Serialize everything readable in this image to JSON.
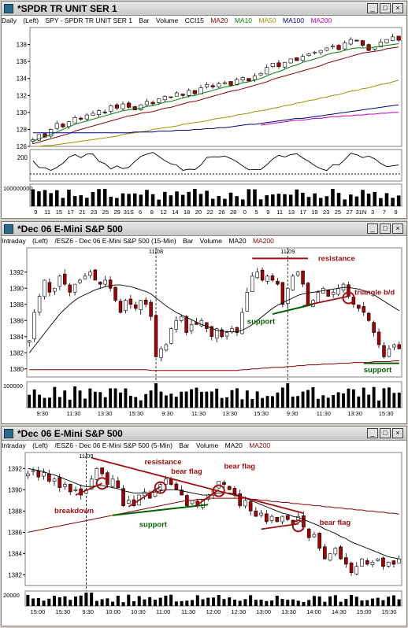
{
  "windows": [
    {
      "title": "*SPDR TR UNIT SER 1",
      "subtitle": {
        "interval": "Daily",
        "axis": "(Left)",
        "symbol": "SPY - SPDR TR UNIT SER 1",
        "style": "Bar",
        "volume": "Volume",
        "ind1": "CCI15",
        "ind2": "MA20",
        "ind3": "MA10",
        "ind4": "MA50",
        "ind5": "MA100",
        "ind6": "MA200"
      },
      "colors": {
        "ma20": "#8b0000",
        "ma10": "#008000",
        "ma50": "#a09000",
        "ma100": "#000080",
        "ma200": "#c000c0"
      }
    },
    {
      "title": "*Dec 06  E-Mini S&P 500",
      "subtitle": {
        "interval": "Intraday",
        "axis": "(Left)",
        "symbol": "/ESZ6 - Dec 06  E-Mini S&P 500  (15-Min)",
        "style": "Bar",
        "volume": "Volume",
        "ind1": "MA20",
        "ind2": "MA200"
      }
    },
    {
      "title": "*Dec 06  E-Mini S&P 500",
      "subtitle": {
        "interval": "Intraday",
        "axis": "(Left)",
        "symbol": "/ESZ6 - Dec 06  E-Mini S&P 500  (5-Min)",
        "style": "Bar",
        "volume": "Volume",
        "ind1": "MA20",
        "ind2": "MA200"
      }
    }
  ],
  "chart_data": [
    {
      "type": "candlestick",
      "title": "SPDR TR UNIT SER 1 (Daily)",
      "ylim": [
        126,
        140
      ],
      "yticks": [
        "138",
        "136",
        "134",
        "132",
        "130",
        "128",
        "126"
      ],
      "xticks": [
        "9",
        "11",
        "15",
        "17",
        "21",
        "23",
        "25",
        "29",
        "31S",
        "6",
        "8",
        "12",
        "14",
        "18",
        "20",
        "22",
        "26",
        "28",
        "0",
        "5",
        "9",
        "11",
        "13",
        "17",
        "19",
        "23",
        "25",
        "27",
        "31N",
        "3",
        "7",
        "9"
      ],
      "close": [
        126.8,
        127.4,
        127.1,
        128.0,
        128.7,
        128.3,
        128.9,
        129.4,
        129.2,
        129.7,
        129.9,
        130.2,
        130.0,
        130.8,
        130.5,
        131.0,
        130.6,
        130.3,
        130.9,
        131.3,
        131.0,
        131.6,
        131.9,
        131.8,
        132.3,
        132.0,
        132.6,
        132.2,
        132.9,
        133.3,
        133.0,
        133.4,
        133.5,
        133.2,
        133.9,
        134.1,
        133.7,
        134.3,
        134.6,
        135.3,
        135.8,
        135.4,
        135.9,
        136.3,
        136.1,
        136.6,
        136.9,
        137.1,
        137.3,
        137.6,
        137.8,
        137.4,
        138.2,
        138.6,
        138.4,
        137.9,
        137.3,
        137.7,
        138.3,
        138.6,
        138.9,
        138.5
      ],
      "ma20": [
        126.3,
        126.5,
        126.7,
        126.9,
        127.1,
        127.3,
        127.5,
        127.8,
        128.0,
        128.2,
        128.4,
        128.6,
        128.8,
        129.0,
        129.2,
        129.4,
        129.6,
        129.7,
        129.9,
        130.0,
        130.1,
        130.3,
        130.5,
        130.6,
        130.8,
        131.0,
        131.2,
        131.3,
        131.5,
        131.7,
        131.9,
        132.1,
        132.3,
        132.5,
        132.6,
        132.8,
        133.0,
        133.2,
        133.4,
        133.6,
        133.9,
        134.1,
        134.3,
        134.5,
        134.7,
        134.9,
        135.1,
        135.3,
        135.5,
        135.8,
        136.0,
        136.2,
        136.4,
        136.6,
        136.8,
        137.0,
        137.1,
        137.2,
        137.3,
        137.5,
        137.6,
        137.7
      ],
      "ma10": [
        126.6,
        126.9,
        127.1,
        127.4,
        127.7,
        128.0,
        128.3,
        128.6,
        128.8,
        129.0,
        129.2,
        129.4,
        129.6,
        129.8,
        130.0,
        130.2,
        130.3,
        130.4,
        130.5,
        130.7,
        130.8,
        131.0,
        131.2,
        131.3,
        131.5,
        131.7,
        131.9,
        132.0,
        132.2,
        132.4,
        132.6,
        132.8,
        133.0,
        133.1,
        133.3,
        133.5,
        133.6,
        133.8,
        134.0,
        134.3,
        134.6,
        134.8,
        135.1,
        135.4,
        135.6,
        135.9,
        136.1,
        136.3,
        136.5,
        136.8,
        137.0,
        137.1,
        137.3,
        137.5,
        137.6,
        137.6,
        137.6,
        137.7,
        137.8,
        137.9,
        138.0,
        138.1
      ],
      "ma50": [
        126.0,
        126.0,
        126.1,
        126.1,
        126.2,
        126.3,
        126.4,
        126.5,
        126.6,
        126.7,
        126.8,
        126.9,
        127.0,
        127.1,
        127.2,
        127.4,
        127.5,
        127.6,
        127.7,
        127.8,
        128.0,
        128.1,
        128.2,
        128.3,
        128.4,
        128.6,
        128.7,
        128.8,
        128.9,
        129.0,
        129.2,
        129.3,
        129.4,
        129.5,
        129.7,
        129.8,
        129.9,
        130.1,
        130.2,
        130.3,
        130.5,
        130.6,
        130.8,
        130.9,
        131.1,
        131.2,
        131.4,
        131.5,
        131.7,
        131.8,
        132.0,
        132.1,
        132.3,
        132.5,
        132.6,
        132.8,
        132.9,
        133.1,
        133.3,
        133.4,
        133.6,
        133.8
      ],
      "ma100": [
        127.6,
        127.6,
        127.6,
        127.6,
        127.6,
        127.6,
        127.6,
        127.6,
        127.6,
        127.6,
        127.6,
        127.6,
        127.6,
        127.6,
        127.6,
        127.6,
        127.6,
        127.7,
        127.7,
        127.7,
        127.7,
        127.8,
        127.8,
        127.8,
        127.9,
        127.9,
        127.9,
        128.0,
        128.0,
        128.1,
        128.1,
        128.2,
        128.2,
        128.3,
        128.4,
        128.5,
        128.6,
        128.6,
        128.7,
        128.8,
        128.9,
        129.0,
        129.1,
        129.2,
        129.3,
        129.3,
        129.4,
        129.5,
        129.6,
        129.7,
        129.8,
        129.9,
        130.0,
        130.1,
        130.2,
        130.3,
        130.4,
        130.5,
        130.6,
        130.7,
        130.8,
        130.9
      ],
      "ma200": [
        null,
        null,
        null,
        null,
        null,
        null,
        null,
        null,
        null,
        null,
        null,
        null,
        null,
        null,
        null,
        null,
        null,
        null,
        null,
        null,
        null,
        null,
        null,
        null,
        null,
        null,
        null,
        null,
        null,
        null,
        null,
        null,
        null,
        null,
        null,
        null,
        null,
        null,
        128.5,
        128.6,
        128.7,
        128.8,
        128.9,
        129.0,
        129.1,
        129.1,
        129.2,
        129.3,
        129.3,
        129.4,
        129.5,
        129.5,
        129.6,
        129.6,
        129.7,
        129.7,
        129.8,
        129.8,
        129.9,
        129.9,
        130.0,
        130.0
      ],
      "cci_label": "200",
      "volume_label": "100000000"
    },
    {
      "type": "candlestick",
      "title": "/ESZ6 - Dec 06 E-Mini S&P 500 (15-Min)",
      "ylim": [
        1379,
        1395
      ],
      "yticks": [
        "1392",
        "1390",
        "1388",
        "1386",
        "1384",
        "1382",
        "1380"
      ],
      "xticks": [
        "9:30",
        "11:30",
        "13:30",
        "15:30",
        "9:30",
        "11:30",
        "13:30",
        "15:30",
        "9:30",
        "11:30",
        "13:30",
        "15:30"
      ],
      "date_marks": [
        "11/08",
        "11/09"
      ],
      "close": [
        1383.5,
        1387.0,
        1389.0,
        1391.0,
        1389.5,
        1390.0,
        1391.5,
        1390.5,
        1389.5,
        1390.5,
        1391.0,
        1391.5,
        1392.0,
        1391.0,
        1390.5,
        1391.0,
        1390.0,
        1388.5,
        1387.0,
        1388.5,
        1388.0,
        1387.5,
        1388.5,
        1388.0,
        1386.5,
        1381.5,
        1382.5,
        1383.0,
        1385.0,
        1386.0,
        1386.5,
        1384.5,
        1385.5,
        1385.5,
        1386.0,
        1385.0,
        1384.0,
        1385.0,
        1384.0,
        1384.5,
        1385.0,
        1384.5,
        1387.0,
        1389.5,
        1391.5,
        1392.0,
        1391.0,
        1391.5,
        1391.0,
        1390.5,
        1388.0,
        1390.0,
        1391.5,
        1392.0,
        1390.5,
        1388.0,
        1388.5,
        1389.5,
        1390.0,
        1389.0,
        1389.5,
        1390.0,
        1390.5,
        1389.0,
        1388.0,
        1387.5,
        1387.0,
        1386.0,
        1384.5,
        1383.0,
        1381.5,
        1382.5,
        1383.0,
        1382.5
      ],
      "ma20": [
        1382.0,
        1382.8,
        1383.6,
        1384.4,
        1385.2,
        1386.0,
        1386.8,
        1387.4,
        1388.0,
        1388.5,
        1388.9,
        1389.2,
        1389.5,
        1389.8,
        1390.0,
        1390.2,
        1390.3,
        1390.4,
        1390.4,
        1390.3,
        1390.2,
        1390.0,
        1389.8,
        1389.6,
        1389.3,
        1388.8,
        1388.3,
        1387.8,
        1387.4,
        1387.0,
        1386.7,
        1386.4,
        1386.1,
        1385.8,
        1385.5,
        1385.3,
        1385.0,
        1384.8,
        1384.7,
        1384.6,
        1384.6,
        1384.6,
        1384.8,
        1385.1,
        1385.5,
        1386.0,
        1386.5,
        1387.0,
        1387.5,
        1387.9,
        1388.2,
        1388.5,
        1388.8,
        1389.1,
        1389.3,
        1389.4,
        1389.5,
        1389.6,
        1389.7,
        1389.8,
        1389.9,
        1390.0,
        1390.1,
        1390.1,
        1390.0,
        1389.9,
        1389.7,
        1389.5,
        1389.2,
        1388.8,
        1388.4,
        1388.0,
        1387.6,
        1387.2
      ],
      "ma200": [
        1379.9,
        1379.9,
        1379.9,
        1379.9,
        1379.9,
        1379.9,
        1379.9,
        1379.9,
        1379.9,
        1379.9,
        1379.9,
        1379.9,
        1379.9,
        1379.9,
        1379.9,
        1379.9,
        1379.9,
        1379.9,
        1379.9,
        1379.9,
        1379.9,
        1379.9,
        1379.9,
        1379.9,
        1379.8,
        1379.8,
        1379.8,
        1379.8,
        1379.8,
        1379.8,
        1379.8,
        1379.8,
        1379.8,
        1379.8,
        1379.8,
        1379.8,
        1379.8,
        1379.8,
        1379.8,
        1379.8,
        1379.8,
        1379.8,
        1379.9,
        1379.9,
        1380.0,
        1380.0,
        1380.1,
        1380.1,
        1380.2,
        1380.2,
        1380.2,
        1380.3,
        1380.3,
        1380.4,
        1380.4,
        1380.5,
        1380.5,
        1380.5,
        1380.6,
        1380.6,
        1380.6,
        1380.7,
        1380.7,
        1380.7,
        1380.8,
        1380.8,
        1380.8,
        1380.8,
        1380.9,
        1380.9,
        1380.9,
        1380.9,
        1381.0,
        1381.0
      ],
      "annotations": [
        "resistance",
        "triangle b/d",
        "support",
        "support"
      ],
      "volume_label": "100000"
    },
    {
      "type": "candlestick",
      "title": "/ESZ6 - Dec 06 E-Mini S&P 500 (5-Min)",
      "ylim": [
        1381,
        1393.5
      ],
      "yticks": [
        "1392",
        "1390",
        "1388",
        "1386",
        "1384",
        "1382"
      ],
      "xticks": [
        "15:00",
        "15:30",
        "9:30",
        "10:00",
        "10:30",
        "11:00",
        "11:30",
        "12:00",
        "12:30",
        "13:00",
        "13:30",
        "14:00",
        "14:30",
        "15:00",
        "15:30"
      ],
      "date_marks": [
        "11/09"
      ],
      "close": [
        1391.5,
        1391.8,
        1391.2,
        1391.6,
        1390.8,
        1391.0,
        1390.2,
        1390.5,
        1389.8,
        1390.0,
        1389.5,
        1390.0,
        1391.0,
        1392.0,
        1391.5,
        1390.5,
        1391.0,
        1390.2,
        1388.5,
        1389.0,
        1388.5,
        1389.5,
        1389.8,
        1389.2,
        1390.0,
        1390.5,
        1391.0,
        1390.5,
        1390.0,
        1389.5,
        1388.5,
        1389.0,
        1388.5,
        1389.0,
        1389.5,
        1390.0,
        1390.8,
        1390.5,
        1390.0,
        1389.5,
        1388.5,
        1389.0,
        1388.0,
        1387.5,
        1387.8,
        1387.0,
        1387.5,
        1387.0,
        1387.5,
        1387.2,
        1386.8,
        1387.5,
        1386.5,
        1385.5,
        1385.8,
        1384.5,
        1383.5,
        1384.0,
        1384.5,
        1383.5,
        1383.0,
        1382.2,
        1382.8,
        1383.5,
        1383.0,
        1383.2,
        1383.5,
        1382.8,
        1383.2,
        1383.0,
        1383.5
      ],
      "ma20": [
        1392.0,
        1391.9,
        1391.8,
        1391.7,
        1391.5,
        1391.4,
        1391.2,
        1391.0,
        1390.8,
        1390.6,
        1390.4,
        1390.3,
        1390.3,
        1390.4,
        1390.4,
        1390.3,
        1390.2,
        1390.1,
        1389.9,
        1389.8,
        1389.7,
        1389.7,
        1389.7,
        1389.7,
        1389.8,
        1389.9,
        1390.0,
        1390.0,
        1390.0,
        1389.9,
        1389.8,
        1389.7,
        1389.6,
        1389.5,
        1389.5,
        1389.6,
        1389.7,
        1389.7,
        1389.7,
        1389.6,
        1389.4,
        1389.2,
        1389.0,
        1388.8,
        1388.6,
        1388.4,
        1388.2,
        1388.0,
        1387.8,
        1387.7,
        1387.5,
        1387.4,
        1387.2,
        1387.0,
        1386.8,
        1386.6,
        1386.3,
        1386.1,
        1385.9,
        1385.6,
        1385.4,
        1385.1,
        1384.9,
        1384.7,
        1384.5,
        1384.3,
        1384.1,
        1383.9,
        1383.7,
        1383.6,
        1383.5
      ],
      "ma200": [
        1386.0,
        1386.1,
        1386.2,
        1386.3,
        1386.4,
        1386.5,
        1386.6,
        1386.7,
        1386.8,
        1386.9,
        1387.0,
        1387.1,
        1387.2,
        1387.3,
        1387.4,
        1387.5,
        1387.6,
        1387.7,
        1387.8,
        1387.9,
        1388.0,
        1388.1,
        1388.2,
        1388.3,
        1388.4,
        1388.5,
        1388.6,
        1388.7,
        1388.8,
        1388.9,
        1389.0,
        1389.0,
        1389.1,
        1389.1,
        1389.2,
        1389.2,
        1389.2,
        1389.2,
        1389.2,
        1389.2,
        1389.2,
        1389.2,
        1389.1,
        1389.1,
        1389.0,
        1389.0,
        1388.9,
        1388.9,
        1388.8,
        1388.8,
        1388.7,
        1388.7,
        1388.6,
        1388.6,
        1388.5,
        1388.5,
        1388.4,
        1388.4,
        1388.3,
        1388.3,
        1388.2,
        1388.2,
        1388.1,
        1388.1,
        1388.0,
        1388.0,
        1387.9,
        1387.9,
        1387.8,
        1387.8,
        1387.7
      ],
      "annotations": [
        "breakdown",
        "resistance",
        "bear flag",
        "bear flag",
        "support",
        "bear flag"
      ],
      "volume_label": "20000"
    }
  ]
}
